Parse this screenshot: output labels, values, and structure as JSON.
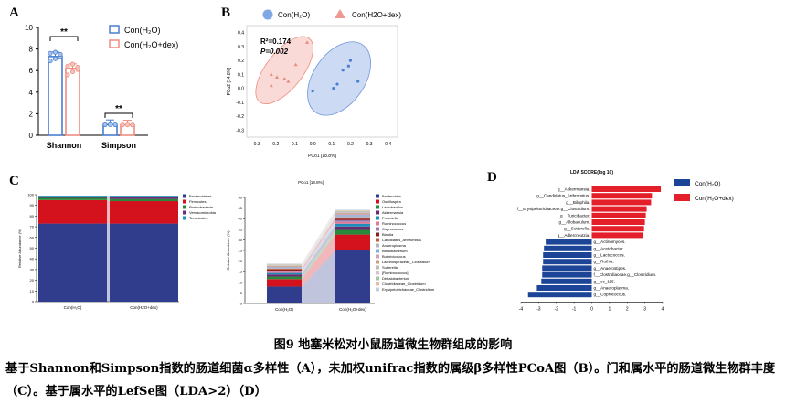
{
  "figure": {
    "title": "图9  地塞米松对小鼠肠道微生物群组成的影响",
    "caption": "基于Shannon和Simpson指数的肠道细菌α多样性（A），未加权unifrac指数的属级β多样性PCoA图（B）。门和属水平的肠道微生物群丰度（C）。基于属水平的LefSe图（LDA>2）（D）"
  },
  "colors": {
    "con": "#4a7fd0",
    "dex": "#ef8c80",
    "con_fill": "#a9c3ea",
    "dex_fill": "#f6c4bc",
    "lefse_con": "#1c4598",
    "lefse_dex": "#e3202a"
  },
  "chart_data": [
    {
      "panel": "A",
      "type": "bar",
      "categories": [
        "Shannon",
        "Simpson"
      ],
      "series": [
        {
          "name": "Con(H₂O)",
          "values": [
            7.3,
            1.0
          ],
          "points": [
            [
              6.9,
              7.1,
              7.3,
              7.6,
              7.7,
              7.5
            ],
            [
              0.98,
              0.99,
              0.98
            ]
          ]
        },
        {
          "name": "Con(H₂O+dex)",
          "values": [
            6.2,
            0.97
          ],
          "points": [
            [
              5.6,
              5.9,
              6.1,
              6.4,
              6.6,
              6.3
            ],
            [
              0.96,
              0.97,
              0.96
            ]
          ]
        }
      ],
      "significance": [
        "**",
        "**"
      ],
      "ylim": [
        0,
        10
      ],
      "yticks": [
        "0",
        "2",
        "4",
        "6",
        "8",
        "10"
      ]
    },
    {
      "panel": "B",
      "type": "scatter",
      "xlabel": "PCo1 [18.8%]",
      "ylabel": "PCo2 [14.8%]",
      "annotations": [
        "R²=0.174",
        "P=0.002"
      ],
      "xlim": [
        -0.35,
        0.45
      ],
      "ylim": [
        -0.35,
        0.45
      ],
      "xticks": [
        "-0.3",
        "-0.2",
        "-0.1",
        "0.0",
        "0.1",
        "0.2",
        "0.3",
        "0.4"
      ],
      "yticks": [
        "-0.3",
        "-0.2",
        "-0.1",
        "0.0",
        "0.1",
        "0.2",
        "0.3",
        "0.4"
      ],
      "series": [
        {
          "name": "Con(H₂O)",
          "marker": "circle",
          "points": [
            [
              0.0,
              -0.02
            ],
            [
              0.11,
              0.0
            ],
            [
              0.13,
              0.03
            ],
            [
              0.16,
              0.13
            ],
            [
              0.19,
              0.16
            ],
            [
              0.2,
              0.2
            ],
            [
              0.24,
              0.05
            ]
          ]
        },
        {
          "name": "Con(H2O+dex)",
          "marker": "triangle",
          "points": [
            [
              -0.22,
              0.02
            ],
            [
              -0.19,
              0.08
            ],
            [
              -0.15,
              0.07
            ],
            [
              -0.13,
              0.05
            ],
            [
              -0.09,
              0.17
            ],
            [
              -0.03,
              0.33
            ],
            [
              -0.22,
              0.1
            ]
          ]
        }
      ]
    },
    {
      "panel": "C1",
      "type": "bar",
      "stacked": true,
      "categories": [
        "Con(H₂O)",
        "Con(H2O+dex)"
      ],
      "ylabel": "Relative Abundance (%)",
      "ylim": [
        0,
        100
      ],
      "yticks": [
        "0",
        "10",
        "20",
        "30",
        "40",
        "50",
        "60",
        "70",
        "80",
        "90",
        "100"
      ],
      "series": [
        {
          "name": "Bacteroidetes",
          "color": "#2f3d8c",
          "values": [
            73,
            73
          ]
        },
        {
          "name": "Firmicutes",
          "color": "#d3121e",
          "values": [
            22,
            21
          ]
        },
        {
          "name": "Proteobacteria",
          "color": "#2a8a3c",
          "values": [
            2,
            2
          ]
        },
        {
          "name": "Verrucomicrobia",
          "color": "#6b2a73",
          "values": [
            1,
            2
          ]
        },
        {
          "name": "Tenericutes",
          "color": "#1d8fb8",
          "values": [
            1,
            1
          ]
        }
      ]
    },
    {
      "panel": "C2",
      "type": "bar",
      "stacked": true,
      "title": "PCo1 [18.8%]",
      "categories": [
        "Con(H₂O)",
        "Con(H₂O+dex)"
      ],
      "ylabel": "Relative Abundance (%)",
      "ylim": [
        0,
        50
      ],
      "yticks": [
        "0",
        "5",
        "10",
        "15",
        "20",
        "25",
        "30",
        "35",
        "40",
        "45",
        "50"
      ],
      "series": [
        {
          "name": "Bacteroides",
          "color": "#2f3d8c",
          "values": [
            8,
            25
          ]
        },
        {
          "name": "Oscillospira",
          "color": "#d3121e",
          "values": [
            3.5,
            7.5
          ]
        },
        {
          "name": "Lactobacillus",
          "color": "#2a8a3c",
          "values": [
            1.2,
            2.2
          ]
        },
        {
          "name": "Akkermansia",
          "color": "#6b2a73",
          "values": [
            1.0,
            1.6
          ]
        },
        {
          "name": "Prevotella",
          "color": "#1d8fb8",
          "values": [
            0.7,
            1.3
          ]
        },
        {
          "name": "Ruminococcus",
          "color": "#e07a9a",
          "values": [
            0.6,
            0.9
          ]
        },
        {
          "name": "Coprococcus",
          "color": "#9b7ab5",
          "values": [
            0.5,
            0.8
          ]
        },
        {
          "name": "Blautia",
          "color": "#8a2020",
          "values": [
            0.5,
            0.7
          ]
        },
        {
          "name": "Candidatus_Arthromitus",
          "color": "#c05a3a",
          "values": [
            0.4,
            0.6
          ]
        },
        {
          "name": "Anaeroplasma",
          "color": "#b4b4c8",
          "values": [
            0.4,
            0.6
          ]
        },
        {
          "name": "Bifidobacterium",
          "color": "#7fb0d8",
          "values": [
            0.3,
            0.5
          ]
        },
        {
          "name": "Butyricicoccus",
          "color": "#d2a0b8",
          "values": [
            0.3,
            0.5
          ]
        },
        {
          "name": "Lachnospiraceae_Clostridium",
          "color": "#c8a078",
          "values": [
            0.3,
            0.4
          ]
        },
        {
          "name": "Sutterella",
          "color": "#bdbdbd",
          "values": [
            0.3,
            0.4
          ]
        },
        {
          "name": "[Ruminococcus]",
          "color": "#d9c2d9",
          "values": [
            0.2,
            0.3
          ]
        },
        {
          "name": "Dehalobacterium",
          "color": "#a0c8a0",
          "values": [
            0.2,
            0.3
          ]
        },
        {
          "name": "Clostridiaceae_Clostridium",
          "color": "#e0c0a0",
          "values": [
            0.2,
            0.3
          ]
        },
        {
          "name": "Erysipelotrichaceae_Clostridium",
          "color": "#c0d0e0",
          "values": [
            0.2,
            0.3
          ]
        }
      ]
    },
    {
      "panel": "D",
      "type": "bar",
      "orientation": "horizontal",
      "title": "LDA SCORE(log 10)",
      "xlim": [
        -4,
        4
      ],
      "xticks": [
        "-4",
        "-3",
        "-2",
        "-1",
        "0",
        "1",
        "2",
        "3",
        "4"
      ],
      "legend": [
        {
          "name": "Con(H₂O)",
          "color": "#1c4598"
        },
        {
          "name": "Con(H₂O+dex)",
          "color": "#e3202a"
        }
      ],
      "categories": [
        "g__Akkermansia.",
        "g__Candidatus_Arthromitus.",
        "g__Bilophila.",
        "f__Erysipelotrichaceae.g__Clostridium.",
        "g__Turicibacter.",
        "g__Allobaculum.",
        "g__Sutterella.",
        "g__Adlercreutzia.",
        "g__Actinomyces.",
        "g__Acetobacter.",
        "g__Lactococcus.",
        "g__Rothia.",
        "g__Anaerostipes.",
        "f__Clostridiaceae.g__Clostridium.",
        "g__cc_115.",
        "g__Anaeroplasma.",
        "g__Coprococcus."
      ],
      "values": [
        3.9,
        3.4,
        3.35,
        3.1,
        3.05,
        3.0,
        2.95,
        2.9,
        -2.6,
        -2.7,
        -2.75,
        -2.75,
        -2.8,
        -2.8,
        -2.85,
        -3.1,
        -3.6
      ]
    }
  ],
  "panelA": {
    "label": "A"
  },
  "panelB": {
    "label": "B"
  },
  "panelC": {
    "label": "C"
  },
  "panelD": {
    "label": "D"
  }
}
